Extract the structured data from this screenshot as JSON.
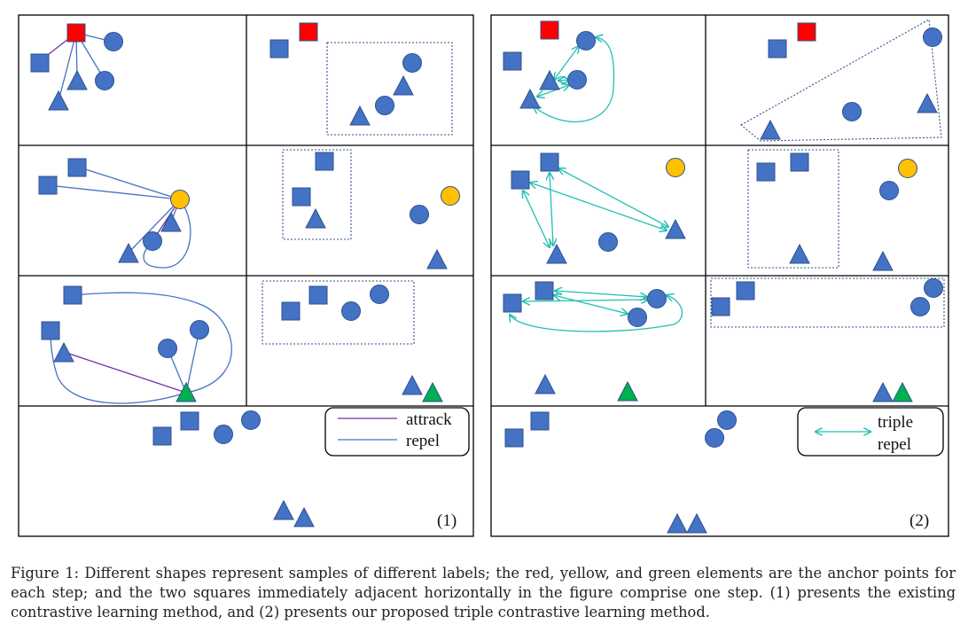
{
  "colors": {
    "sample_blue": "#4472C4",
    "sample_stroke": "#2F528F",
    "anchor_red": "#FF0000",
    "anchor_yellow": "#FFC000",
    "anchor_green": "#00B050",
    "attract_line": "#7030A0",
    "repel_line": "#4472C4",
    "triple_repel_arrow": "#20C0B0"
  },
  "panel1": {
    "label": "(1)",
    "legend": {
      "attract": "attrack",
      "repel": "repel"
    }
  },
  "panel2": {
    "label": "(2)",
    "legend": {
      "triple": "triple",
      "repel": "repel"
    }
  },
  "caption": "Figure 1: Different shapes represent samples of different labels; the red, yellow, and green elements are the anchor points for each step; and the two squares immediately adjacent horizontally in the figure comprise one step. (1) presents the existing contrastive learning method, and (2) presents our proposed triple contrastive learning method."
}
